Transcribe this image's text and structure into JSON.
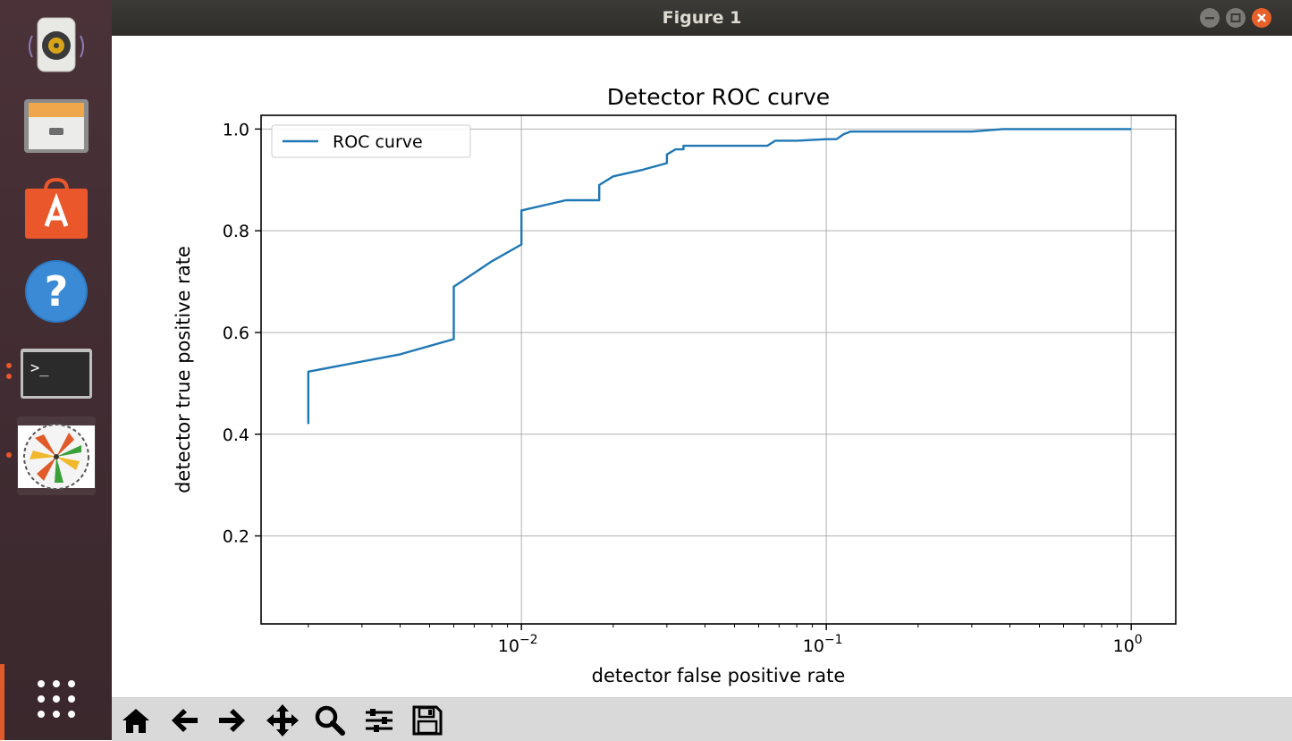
{
  "window": {
    "title": "Figure 1"
  },
  "launcher": {
    "items": [
      {
        "name": "rhythmbox",
        "icon": "speaker-icon"
      },
      {
        "name": "files",
        "icon": "file-cabinet-icon"
      },
      {
        "name": "software",
        "icon": "shopping-bag-icon"
      },
      {
        "name": "help",
        "icon": "question-icon"
      },
      {
        "name": "terminal",
        "icon": "terminal-icon",
        "terminal_prompt": ">_"
      },
      {
        "name": "figure-app",
        "icon": "pinwheel-icon"
      },
      {
        "name": "show-apps",
        "icon": "app-grid-icon"
      }
    ]
  },
  "toolbar": {
    "buttons": [
      "home-icon",
      "back-arrow-icon",
      "forward-arrow-icon",
      "pan-icon",
      "zoom-icon",
      "configure-subplots-icon",
      "save-icon"
    ]
  },
  "chart_data": {
    "type": "line",
    "title": "Detector ROC curve",
    "xlabel": "detector false positive rate",
    "ylabel": "detector true positive rate",
    "xscale": "log",
    "xlim": [
      0.0014,
      1.4
    ],
    "ylim": [
      0.027,
      1.027
    ],
    "xticks": [
      0.01,
      0.1,
      1
    ],
    "xtick_labels": [
      {
        "base": "10",
        "exp": "−2"
      },
      {
        "base": "10",
        "exp": "−1"
      },
      {
        "base": "10",
        "exp": "0"
      }
    ],
    "yticks": [
      0.2,
      0.4,
      0.6,
      0.8,
      1.0
    ],
    "ytick_labels": [
      "0.2",
      "0.4",
      "0.6",
      "0.8",
      "1.0"
    ],
    "grid": true,
    "legend": {
      "placement": "upper-left",
      "entries": [
        "ROC curve"
      ]
    },
    "series": [
      {
        "name": "ROC curve",
        "color": "#1f77b4",
        "x": [
          0.002,
          0.002,
          0.004,
          0.006,
          0.006,
          0.008,
          0.01,
          0.01,
          0.014,
          0.018,
          0.018,
          0.02,
          0.025,
          0.03,
          0.03,
          0.032,
          0.034,
          0.034,
          0.064,
          0.068,
          0.08,
          0.1,
          0.108,
          0.114,
          0.12,
          0.3,
          0.38,
          1.0
        ],
        "y": [
          0.42,
          0.523,
          0.557,
          0.587,
          0.69,
          0.74,
          0.773,
          0.84,
          0.86,
          0.86,
          0.89,
          0.907,
          0.92,
          0.933,
          0.95,
          0.96,
          0.96,
          0.967,
          0.967,
          0.977,
          0.977,
          0.98,
          0.98,
          0.99,
          0.995,
          0.995,
          1.0,
          1.0
        ]
      }
    ]
  }
}
